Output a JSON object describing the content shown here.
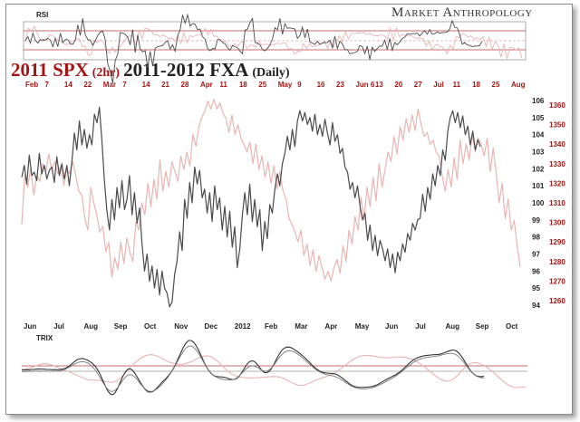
{
  "header": {
    "brand": "Market Anthropology",
    "rsi_label": "RSI",
    "trix_label": "TRIX",
    "title_spx": "2011 SPX",
    "title_spx_sub": "(2hr)",
    "title_fxa": "2011-2012 FXA",
    "title_fxa_sub": "(Daily)"
  },
  "colors": {
    "spx_series": "#e8b4b4",
    "fxa_series": "#4a4a4a",
    "date_red": "#a31515",
    "axis_text": "#222222"
  },
  "chart_data": {
    "type": "line",
    "title": "2011 SPX (2hr) 2011-2012 FXA (Daily)",
    "top_axis_labels": [
      {
        "label": "Feb",
        "red": true
      },
      {
        "label": "7",
        "red": true
      },
      {
        "label": "14",
        "red": true
      },
      {
        "label": "22",
        "red": true
      },
      {
        "label": "Mar",
        "red": true
      },
      {
        "label": "7",
        "red": true
      },
      {
        "label": "14",
        "red": true
      },
      {
        "label": "21",
        "red": true
      },
      {
        "label": "28",
        "red": true
      },
      {
        "label": "Apr",
        "red": true
      },
      {
        "label": "11",
        "red": true
      },
      {
        "label": "18",
        "red": true
      },
      {
        "label": "25",
        "red": true
      },
      {
        "label": "May",
        "red": true
      },
      {
        "label": "9",
        "red": true
      },
      {
        "label": "16",
        "red": true
      },
      {
        "label": "23",
        "red": true
      },
      {
        "label": "Jun 6",
        "red": true
      },
      {
        "label": "13",
        "red": true
      },
      {
        "label": "20",
        "red": true
      },
      {
        "label": "27",
        "red": true
      },
      {
        "label": "Jul",
        "red": true
      },
      {
        "label": "11",
        "red": true
      },
      {
        "label": "18",
        "red": true
      },
      {
        "label": "25",
        "red": true
      },
      {
        "label": "Aug",
        "red": true
      }
    ],
    "bottom_axis_labels": [
      "Jun",
      "Jul",
      "Aug",
      "Sep",
      "Oct",
      "Nov",
      "Dec",
      "2012",
      "Feb",
      "Mar",
      "Apr",
      "May",
      "Jun",
      "Jul",
      "Aug",
      "Sep",
      "Oct"
    ],
    "fxa_axis": {
      "ticks": [
        "106",
        "105",
        "104",
        "103",
        "102",
        "101",
        "100",
        "99",
        "98",
        "97",
        "96",
        "95",
        "94"
      ],
      "ylim": [
        94,
        106
      ]
    },
    "spx_axis": {
      "ticks": [
        "1360",
        "1350",
        "1340",
        "1330",
        "1320",
        "1310",
        "1300",
        "1290",
        "1280",
        "1270",
        "1260"
      ],
      "ylim": [
        1260,
        1360
      ]
    },
    "series": [
      {
        "name": "2011-2012 FXA",
        "axis": "fxa",
        "values": [
          101.5,
          102.2,
          101.1,
          102.8,
          101.6,
          101.8,
          101.3,
          102.9,
          101.7,
          102.2,
          101.4,
          101.9,
          102.1,
          101.2,
          102.7,
          101.6,
          102.3,
          101.4,
          102.2,
          101.0,
          102.4,
          104.1,
          103.1,
          104.8,
          103.4,
          104.3,
          103.2,
          104.0,
          103.4,
          105.2,
          104.7,
          105.6,
          103.6,
          101.3,
          99.5,
          98.4,
          100.2,
          99.0,
          100.9,
          99.7,
          101.3,
          99.6,
          100.2,
          101.6,
          99.3,
          100.6,
          98.8,
          99.7,
          97.6,
          96.0,
          97.0,
          95.4,
          96.3,
          95.0,
          96.1,
          94.6,
          96.0,
          95.0,
          94.7,
          93.9,
          94.2,
          95.8,
          96.6,
          98.3,
          97.2,
          100.2,
          99.1,
          101.2,
          100.0,
          102.1,
          101.1,
          101.9,
          100.3,
          100.8,
          99.4,
          100.6,
          98.9,
          101.0,
          99.6,
          100.3,
          98.4,
          99.8,
          98.0,
          99.5,
          97.4,
          98.6,
          96.2,
          97.3,
          99.2,
          100.6,
          99.3,
          101.1,
          98.9,
          100.2,
          98.6,
          99.6,
          97.2,
          98.9,
          97.9,
          99.9,
          99.4,
          100.8,
          101.7,
          101.0,
          102.3,
          102.9,
          103.9,
          103.1,
          104.3,
          103.3,
          104.8,
          105.4,
          104.8,
          105.3,
          104.6,
          105.0,
          104.2,
          105.2,
          104.0,
          104.6,
          103.9,
          104.9,
          104.1,
          103.4,
          104.7,
          103.6,
          104.0,
          102.9,
          103.2,
          102.1,
          101.8,
          100.8,
          101.2,
          100.3,
          101.0,
          99.8,
          99.0,
          99.4,
          97.8,
          98.7,
          97.2,
          98.1,
          96.9,
          97.8,
          97.3,
          96.6,
          97.3,
          96.2,
          97.0,
          95.9,
          97.1,
          96.6,
          97.6,
          97.1,
          98.2,
          97.8,
          98.8,
          98.4,
          99.0,
          99.1,
          100.5,
          99.5,
          100.9,
          100.2,
          101.7,
          101.0,
          102.2,
          101.6,
          103.1,
          102.5,
          104.2,
          105.0,
          105.4,
          104.7,
          105.3,
          104.4,
          105.1,
          104.0,
          104.5,
          103.4,
          104.2,
          103.1,
          103.7,
          103.3
        ]
      },
      {
        "name": "2011 SPX",
        "axis": "spx",
        "values": [
          1299,
          1324,
          1318,
          1328,
          1314,
          1324,
          1321,
          1330,
          1326,
          1335,
          1327,
          1331,
          1325,
          1329,
          1319,
          1327,
          1325,
          1331,
          1324,
          1316,
          1314,
          1302,
          1296,
          1318,
          1310,
          1304,
          1295,
          1298,
          1285,
          1290,
          1272,
          1282,
          1276,
          1290,
          1279,
          1292,
          1285,
          1280,
          1300,
          1296,
          1310,
          1304,
          1320,
          1308,
          1322,
          1312,
          1332,
          1316,
          1326,
          1318,
          1331,
          1326,
          1321,
          1334,
          1327,
          1336,
          1329,
          1345,
          1339,
          1349,
          1354,
          1357,
          1362,
          1358,
          1363,
          1358,
          1361,
          1356,
          1353,
          1346,
          1355,
          1345,
          1350,
          1343,
          1340,
          1336,
          1341,
          1330,
          1340,
          1327,
          1334,
          1323,
          1331,
          1320,
          1329,
          1317,
          1326,
          1316,
          1312,
          1302,
          1299,
          1295,
          1290,
          1296,
          1283,
          1289,
          1278,
          1286,
          1275,
          1283,
          1277,
          1271,
          1275,
          1270,
          1277,
          1281,
          1274,
          1288,
          1280,
          1296,
          1289,
          1303,
          1296,
          1313,
          1301,
          1318,
          1308,
          1323,
          1311,
          1330,
          1318,
          1327,
          1336,
          1331,
          1344,
          1335,
          1349,
          1342,
          1353,
          1346,
          1355,
          1347,
          1358,
          1350,
          1344,
          1346,
          1340,
          1342,
          1336,
          1334,
          1324,
          1316,
          1327,
          1318,
          1333,
          1322,
          1342,
          1330,
          1340,
          1332,
          1345,
          1336,
          1343,
          1340,
          1334,
          1343,
          1326,
          1338,
          1325,
          1310,
          1320,
          1302,
          1312,
          1296,
          1301,
          1288,
          1277
        ]
      }
    ]
  }
}
